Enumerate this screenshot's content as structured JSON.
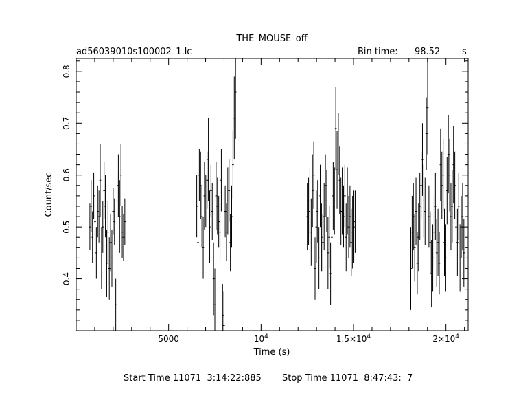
{
  "chart_data": {
    "type": "scatter",
    "title": "THE_MOUSE_off",
    "file_label": "ad56039010s100002_1.lc",
    "bin_time_label": "Bin time:",
    "bin_time_value": "98.52",
    "bin_time_unit": "s",
    "xlabel": "Time (s)",
    "ylabel": "Count/sec",
    "xlim": [
      0,
      21200
    ],
    "ylim": [
      0.3,
      0.825
    ],
    "x_ticks": [
      {
        "value": 5000,
        "label": "5000"
      },
      {
        "value": 10000,
        "label": "10",
        "exp": "4"
      },
      {
        "value": 15000,
        "label": "1.5×10",
        "exp": "4"
      },
      {
        "value": 20000,
        "label": "2×10",
        "exp": "4"
      }
    ],
    "y_ticks": [
      {
        "value": 0.4,
        "label": "0.4"
      },
      {
        "value": 0.5,
        "label": "0.5"
      },
      {
        "value": 0.6,
        "label": "0.6"
      },
      {
        "value": 0.7,
        "label": "0.7"
      },
      {
        "value": 0.8,
        "label": "0.8"
      }
    ],
    "start_time": "Start Time 11071  3:14:22:885",
    "stop_time": "Stop Time 11071  8:47:43:  7",
    "points": [
      [
        740,
        0.5,
        0.045
      ],
      [
        810,
        0.54,
        0.05
      ],
      [
        880,
        0.48,
        0.05
      ],
      [
        950,
        0.56,
        0.045
      ],
      [
        1020,
        0.51,
        0.045
      ],
      [
        1090,
        0.45,
        0.05
      ],
      [
        1160,
        0.53,
        0.05
      ],
      [
        1230,
        0.52,
        0.05
      ],
      [
        1300,
        0.59,
        0.07
      ],
      [
        1370,
        0.44,
        0.06
      ],
      [
        1440,
        0.5,
        0.05
      ],
      [
        1510,
        0.57,
        0.055
      ],
      [
        1580,
        0.54,
        0.06
      ],
      [
        1650,
        0.43,
        0.065
      ],
      [
        1720,
        0.49,
        0.06
      ],
      [
        1790,
        0.42,
        0.06
      ],
      [
        1860,
        0.47,
        0.055
      ],
      [
        1930,
        0.44,
        0.055
      ],
      [
        2000,
        0.53,
        0.045
      ],
      [
        2070,
        0.51,
        0.045
      ],
      [
        2140,
        0.35,
        0.05
      ],
      [
        2210,
        0.55,
        0.055
      ],
      [
        2280,
        0.58,
        0.06
      ],
      [
        2350,
        0.52,
        0.07
      ],
      [
        2420,
        0.6,
        0.06
      ],
      [
        2490,
        0.49,
        0.05
      ],
      [
        2560,
        0.48,
        0.045
      ],
      [
        2630,
        0.51,
        0.045
      ],
      [
        6520,
        0.54,
        0.06
      ],
      [
        6590,
        0.47,
        0.06
      ],
      [
        6660,
        0.6,
        0.05
      ],
      [
        6730,
        0.58,
        0.065
      ],
      [
        6800,
        0.52,
        0.06
      ],
      [
        6870,
        0.46,
        0.06
      ],
      [
        6940,
        0.56,
        0.065
      ],
      [
        7010,
        0.55,
        0.05
      ],
      [
        7080,
        0.59,
        0.055
      ],
      [
        7150,
        0.63,
        0.08
      ],
      [
        7220,
        0.5,
        0.07
      ],
      [
        7290,
        0.57,
        0.05
      ],
      [
        7360,
        0.53,
        0.055
      ],
      [
        7430,
        0.4,
        0.07
      ],
      [
        7500,
        0.35,
        0.07
      ],
      [
        7570,
        0.56,
        0.065
      ],
      [
        7640,
        0.54,
        0.055
      ],
      [
        7710,
        0.51,
        0.05
      ],
      [
        7780,
        0.49,
        0.055
      ],
      [
        7850,
        0.59,
        0.06
      ],
      [
        7920,
        0.33,
        0.06
      ],
      [
        7990,
        0.31,
        0.065
      ],
      [
        8060,
        0.53,
        0.05
      ],
      [
        8130,
        0.49,
        0.055
      ],
      [
        8200,
        0.55,
        0.065
      ],
      [
        8270,
        0.57,
        0.06
      ],
      [
        8340,
        0.47,
        0.055
      ],
      [
        8410,
        0.52,
        0.06
      ],
      [
        8480,
        0.62,
        0.065
      ],
      [
        8550,
        0.71,
        0.08
      ],
      [
        8620,
        0.76,
        0.09
      ],
      [
        12500,
        0.52,
        0.065
      ],
      [
        12570,
        0.53,
        0.065
      ],
      [
        12640,
        0.55,
        0.065
      ],
      [
        12710,
        0.49,
        0.065
      ],
      [
        12780,
        0.57,
        0.07
      ],
      [
        12850,
        0.6,
        0.065
      ],
      [
        12920,
        0.42,
        0.06
      ],
      [
        12990,
        0.5,
        0.07
      ],
      [
        13060,
        0.53,
        0.06
      ],
      [
        13130,
        0.44,
        0.06
      ],
      [
        13200,
        0.56,
        0.06
      ],
      [
        13270,
        0.48,
        0.065
      ],
      [
        13340,
        0.47,
        0.055
      ],
      [
        13410,
        0.52,
        0.065
      ],
      [
        13480,
        0.58,
        0.06
      ],
      [
        13550,
        0.55,
        0.06
      ],
      [
        13620,
        0.45,
        0.07
      ],
      [
        13690,
        0.48,
        0.06
      ],
      [
        13760,
        0.41,
        0.06
      ],
      [
        13830,
        0.48,
        0.06
      ],
      [
        13900,
        0.56,
        0.065
      ],
      [
        13970,
        0.55,
        0.065
      ],
      [
        14040,
        0.69,
        0.08
      ],
      [
        14110,
        0.61,
        0.075
      ],
      [
        14180,
        0.66,
        0.06
      ],
      [
        14250,
        0.59,
        0.065
      ],
      [
        14320,
        0.53,
        0.065
      ],
      [
        14390,
        0.55,
        0.065
      ],
      [
        14460,
        0.52,
        0.06
      ],
      [
        14530,
        0.56,
        0.06
      ],
      [
        14600,
        0.48,
        0.065
      ],
      [
        14670,
        0.55,
        0.065
      ],
      [
        14740,
        0.5,
        0.06
      ],
      [
        14810,
        0.52,
        0.06
      ],
      [
        14880,
        0.47,
        0.065
      ],
      [
        14950,
        0.49,
        0.07
      ],
      [
        15020,
        0.5,
        0.07
      ],
      [
        15090,
        0.51,
        0.06
      ],
      [
        18100,
        0.42,
        0.08
      ],
      [
        18170,
        0.49,
        0.07
      ],
      [
        18240,
        0.52,
        0.065
      ],
      [
        18310,
        0.46,
        0.065
      ],
      [
        18380,
        0.53,
        0.065
      ],
      [
        18450,
        0.43,
        0.06
      ],
      [
        18520,
        0.48,
        0.065
      ],
      [
        18590,
        0.54,
        0.065
      ],
      [
        18660,
        0.58,
        0.065
      ],
      [
        18730,
        0.63,
        0.07
      ],
      [
        18800,
        0.55,
        0.07
      ],
      [
        18870,
        0.53,
        0.065
      ],
      [
        18940,
        0.68,
        0.07
      ],
      [
        19010,
        0.73,
        0.09
      ],
      [
        19080,
        0.52,
        0.06
      ],
      [
        19150,
        0.47,
        0.06
      ],
      [
        19220,
        0.41,
        0.065
      ],
      [
        19290,
        0.44,
        0.065
      ],
      [
        19360,
        0.49,
        0.07
      ],
      [
        19430,
        0.54,
        0.065
      ],
      [
        19500,
        0.45,
        0.065
      ],
      [
        19570,
        0.47,
        0.065
      ],
      [
        19640,
        0.43,
        0.06
      ],
      [
        19710,
        0.62,
        0.07
      ],
      [
        19780,
        0.58,
        0.065
      ],
      [
        19850,
        0.6,
        0.07
      ],
      [
        19920,
        0.47,
        0.065
      ],
      [
        19990,
        0.44,
        0.065
      ],
      [
        20060,
        0.57,
        0.065
      ],
      [
        20130,
        0.64,
        0.075
      ],
      [
        20200,
        0.6,
        0.07
      ],
      [
        20270,
        0.52,
        0.065
      ],
      [
        20340,
        0.54,
        0.07
      ],
      [
        20410,
        0.62,
        0.075
      ],
      [
        20480,
        0.58,
        0.065
      ],
      [
        20550,
        0.5,
        0.065
      ],
      [
        20620,
        0.47,
        0.065
      ],
      [
        20690,
        0.54,
        0.065
      ],
      [
        20760,
        0.44,
        0.065
      ],
      [
        20830,
        0.5,
        0.06
      ],
      [
        20900,
        0.52,
        0.065
      ],
      [
        20970,
        0.45,
        0.065
      ]
    ]
  }
}
